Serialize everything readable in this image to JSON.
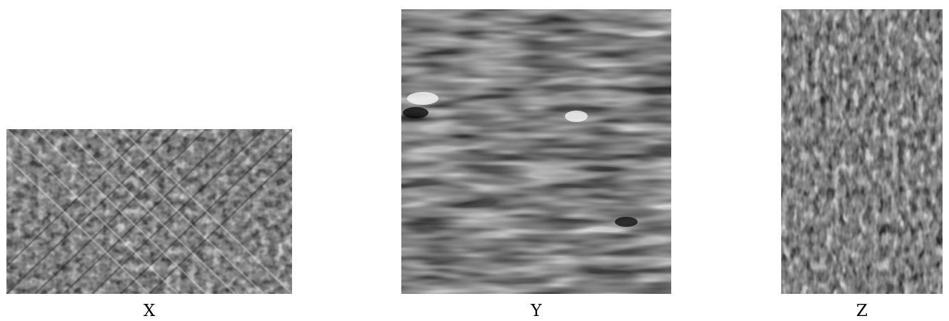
{
  "panels": [
    {
      "id": "x",
      "label": "X",
      "texture": "diagonal-crosshatch-noise"
    },
    {
      "id": "y",
      "label": "Y",
      "texture": "horizontal-wavy-stripes"
    },
    {
      "id": "z",
      "label": "Z",
      "texture": "fine-vertical-speckle"
    }
  ],
  "colors": {
    "background": "#ffffff",
    "texture_dark": "#0a0a0a",
    "texture_mid": "#808080",
    "texture_light": "#f5f5f5"
  }
}
